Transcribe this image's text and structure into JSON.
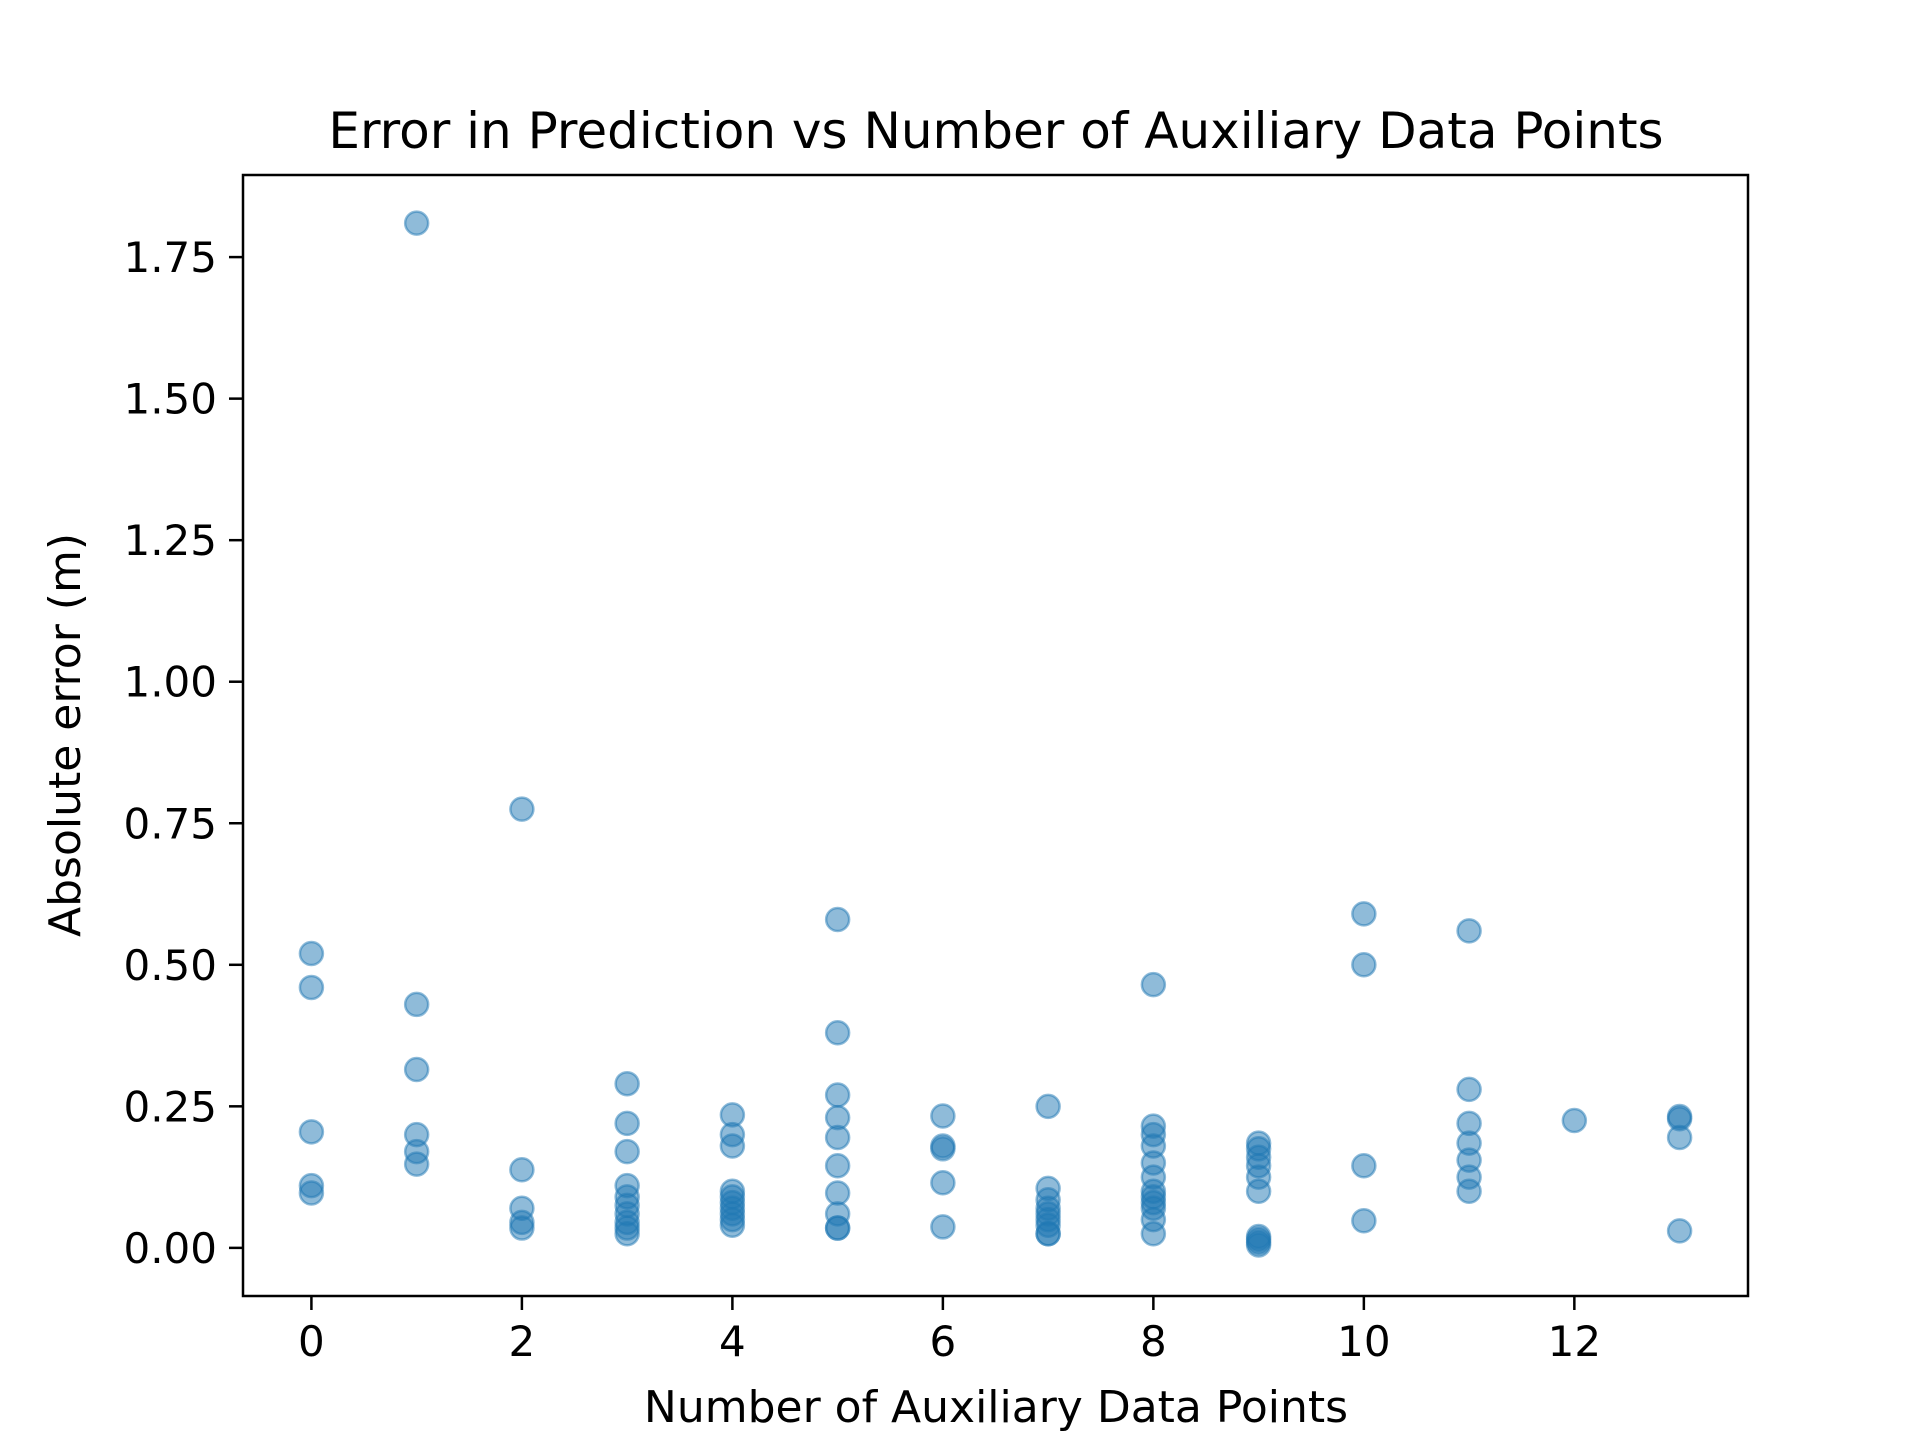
{
  "chart_data": {
    "type": "scatter",
    "title": "Error in Prediction vs Number of Auxiliary Data Points",
    "xlabel": "Number of Auxiliary Data Points",
    "ylabel": "Absolute error (m)",
    "xlim": [
      -0.65,
      13.65
    ],
    "ylim": [
      -0.085,
      1.895
    ],
    "x_ticks": [
      0,
      2,
      4,
      6,
      8,
      10,
      12
    ],
    "x_tick_labels": [
      "0",
      "2",
      "4",
      "6",
      "8",
      "10",
      "12"
    ],
    "y_ticks": [
      0.0,
      0.25,
      0.5,
      0.75,
      1.0,
      1.25,
      1.5,
      1.75
    ],
    "y_tick_labels": [
      "0.00",
      "0.25",
      "0.50",
      "0.75",
      "1.00",
      "1.25",
      "1.50",
      "1.75"
    ],
    "grid": false,
    "legend": "none",
    "marker_color": "#1f77b4",
    "marker_alpha": 0.5,
    "series": [
      {
        "x": [
          0,
          0,
          0,
          0,
          0,
          1,
          1,
          1,
          1,
          1,
          1,
          2,
          2,
          2,
          2,
          2,
          3,
          3,
          3,
          3,
          3,
          3,
          3,
          3,
          3,
          3,
          4,
          4,
          4,
          4,
          4,
          4,
          4,
          4,
          4,
          4,
          5,
          5,
          5,
          5,
          5,
          5,
          5,
          5,
          5,
          5,
          6,
          6,
          6,
          6,
          6,
          7,
          7,
          7,
          7,
          7,
          7,
          7,
          7,
          7,
          8,
          8,
          8,
          8,
          8,
          8,
          8,
          8,
          8,
          8,
          8,
          8,
          9,
          9,
          9,
          9,
          9,
          9,
          9,
          9,
          9,
          9,
          10,
          10,
          10,
          10,
          11,
          11,
          11,
          11,
          11,
          11,
          11,
          12,
          13,
          13,
          13,
          13
        ],
        "y": [
          0.52,
          0.46,
          0.205,
          0.11,
          0.097,
          1.81,
          0.43,
          0.315,
          0.2,
          0.17,
          0.148,
          0.775,
          0.138,
          0.07,
          0.045,
          0.035,
          0.29,
          0.22,
          0.17,
          0.11,
          0.09,
          0.075,
          0.06,
          0.045,
          0.035,
          0.025,
          0.235,
          0.2,
          0.18,
          0.1,
          0.09,
          0.08,
          0.07,
          0.06,
          0.05,
          0.04,
          0.58,
          0.38,
          0.27,
          0.23,
          0.195,
          0.145,
          0.097,
          0.06,
          0.035,
          0.035,
          0.233,
          0.18,
          0.175,
          0.115,
          0.037,
          0.25,
          0.105,
          0.085,
          0.07,
          0.06,
          0.05,
          0.04,
          0.025,
          0.025,
          0.465,
          0.215,
          0.2,
          0.18,
          0.15,
          0.125,
          0.1,
          0.09,
          0.08,
          0.07,
          0.05,
          0.025,
          0.185,
          0.175,
          0.16,
          0.145,
          0.125,
          0.1,
          0.02,
          0.015,
          0.01,
          0.005,
          0.59,
          0.5,
          0.145,
          0.048,
          0.56,
          0.28,
          0.22,
          0.185,
          0.155,
          0.125,
          0.1,
          0.225,
          0.232,
          0.228,
          0.195,
          0.03
        ]
      }
    ]
  }
}
